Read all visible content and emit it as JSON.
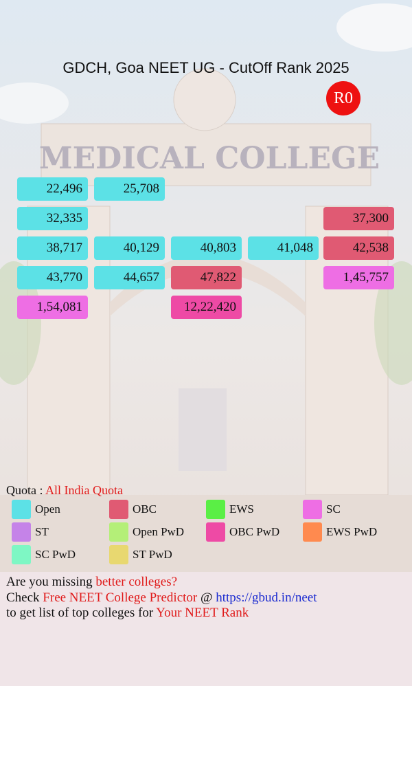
{
  "header": {
    "title": "GDCH, Goa NEET UG - CutOff Rank 2025",
    "badge": "R0"
  },
  "grid": {
    "rows": [
      [
        {
          "text": "22,496",
          "color": "#5ce1e6"
        },
        {
          "text": "25,708",
          "color": "#5ce1e6"
        },
        null,
        null,
        null
      ],
      [
        {
          "text": "32,335",
          "color": "#5ce1e6"
        },
        null,
        null,
        null,
        {
          "text": "37,300",
          "color": "#e05a73"
        }
      ],
      [
        {
          "text": "38,717",
          "color": "#5ce1e6"
        },
        {
          "text": "40,129",
          "color": "#5ce1e6"
        },
        {
          "text": "40,803",
          "color": "#5ce1e6"
        },
        {
          "text": "41,048",
          "color": "#5ce1e6"
        },
        {
          "text": "42,538",
          "color": "#e05a73"
        }
      ],
      [
        {
          "text": "43,770",
          "color": "#5ce1e6"
        },
        {
          "text": "44,657",
          "color": "#5ce1e6"
        },
        {
          "text": "47,822",
          "color": "#e05a73"
        },
        null,
        {
          "text": "1,45,757",
          "color": "#ee6ee4"
        }
      ],
      [
        {
          "text": "1,54,081",
          "color": "#ee6ee4"
        },
        null,
        {
          "text": "12,22,420",
          "color": "#ee4aa5"
        },
        null,
        null
      ]
    ]
  },
  "quota": {
    "label": "Quota : ",
    "value": "All India Quota"
  },
  "legend": [
    {
      "name": "Open",
      "color": "#5ce1e6"
    },
    {
      "name": "OBC",
      "color": "#e05a73"
    },
    {
      "name": "EWS",
      "color": "#5aef45"
    },
    {
      "name": "SC",
      "color": "#ee6ee4"
    },
    {
      "name": "ST",
      "color": "#c583e8"
    },
    {
      "name": "Open PwD",
      "color": "#b4ef78"
    },
    {
      "name": "OBC PwD",
      "color": "#ee4aa5"
    },
    {
      "name": "EWS PwD",
      "color": "#ff8a4f"
    },
    {
      "name": "SC PwD",
      "color": "#7ef7c4"
    },
    {
      "name": "ST PwD",
      "color": "#e8d870"
    }
  ],
  "footer": {
    "lines": [
      [
        {
          "text": "Are you missing ",
          "style": "plain"
        },
        {
          "text": "better colleges?",
          "style": "red"
        }
      ],
      [
        {
          "text": "Check ",
          "style": "plain"
        },
        {
          "text": "Free NEET College Predictor",
          "style": "red"
        },
        {
          "text": " @ ",
          "style": "plain"
        },
        {
          "text": "https://gbud.in/neet",
          "style": "link"
        }
      ],
      [
        {
          "text": "to get list of top colleges for ",
          "style": "plain"
        },
        {
          "text": "Your NEET Rank",
          "style": "red"
        }
      ]
    ]
  }
}
